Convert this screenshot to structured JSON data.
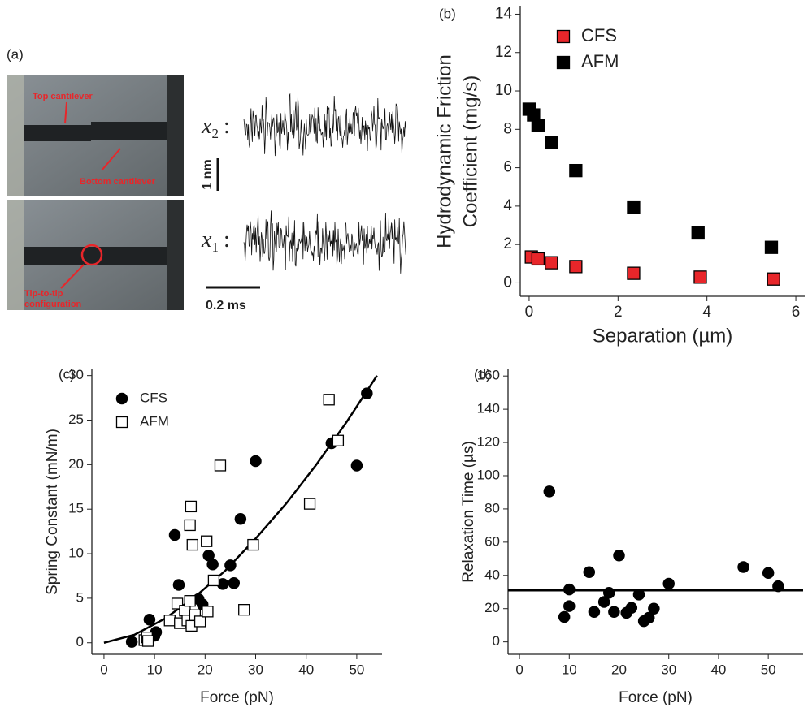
{
  "panel_a": {
    "label": "(a)",
    "annotations": {
      "top": "Top cantilever",
      "bottom": "Bottom cantilever",
      "tip": [
        "Tip-to-tip",
        "configuration"
      ]
    },
    "traces": [
      {
        "var": "x",
        "sub": "2",
        "sep": ":"
      },
      {
        "var": "x",
        "sub": "1",
        "sep": ":"
      }
    ],
    "scale_bars": {
      "vertical": "1 nm",
      "horizontal": "0.2 ms"
    }
  },
  "chart_data": [
    {
      "type": "scatter",
      "panel_label": "(b)",
      "xlabel": "Separation (µm)",
      "ylabel": [
        "Hydrodynamic Friction",
        "Coefficient (mg/s)"
      ],
      "xlim": [
        -0.2,
        6.2
      ],
      "ylim": [
        -0.7,
        14.4
      ],
      "xticks": [
        0,
        2,
        4,
        6
      ],
      "yticks": [
        0,
        2,
        4,
        6,
        8,
        10,
        12,
        14
      ],
      "legend": "upper-left",
      "series": [
        {
          "name": "CFS",
          "color": "#e8262a",
          "marker": "square",
          "filled": true,
          "x": [
            0.05,
            0.2,
            0.5,
            1.05,
            2.35,
            3.85,
            5.5
          ],
          "values": [
            1.35,
            1.25,
            1.05,
            0.85,
            0.5,
            0.3,
            0.2
          ]
        },
        {
          "name": "AFM",
          "color": "#000000",
          "marker": "square",
          "filled": true,
          "x": [
            0,
            0.1,
            0.2,
            0.5,
            1.05,
            2.35,
            3.8,
            5.45
          ],
          "values": [
            9.05,
            8.75,
            8.2,
            7.3,
            5.85,
            3.95,
            2.6,
            1.85
          ]
        }
      ]
    },
    {
      "type": "scatter",
      "panel_label": "(c)",
      "xlabel": "Force (pN)",
      "ylabel": [
        "Spring Constant (mN/m)"
      ],
      "xlim": [
        -2.4,
        55
      ],
      "ylim": [
        -1.3,
        30.7
      ],
      "xticks": [
        0,
        10,
        20,
        30,
        40,
        50
      ],
      "yticks": [
        0,
        5,
        10,
        15,
        20,
        25,
        30
      ],
      "legend": "upper-left",
      "series": [
        {
          "name": "CFS",
          "color": "#000000",
          "marker": "circle",
          "filled": true,
          "x": [
            5.5,
            9,
            10,
            10.3,
            14,
            14.8,
            16.7,
            17.5,
            18.7,
            19.5,
            20.7,
            21.5,
            23.5,
            25,
            25.7,
            27,
            30,
            45,
            50,
            52
          ],
          "values": [
            0.1,
            2.6,
            0.8,
            1.2,
            12.1,
            6.5,
            2.6,
            2.8,
            4.9,
            4.3,
            9.8,
            8.8,
            6.6,
            8.7,
            6.7,
            13.9,
            20.4,
            22.4,
            19.9,
            28
          ]
        },
        {
          "name": "AFM",
          "color": "#000000",
          "marker": "square",
          "filled": false,
          "x": [
            8,
            8.5,
            8.7,
            13,
            14.5,
            15,
            16,
            16.5,
            17,
            17,
            17.2,
            17.3,
            17.5,
            18,
            19,
            20.3,
            20.5,
            21.7,
            23,
            27.7,
            29.5,
            40.7,
            44.5,
            46.3
          ],
          "values": [
            0.3,
            0.6,
            0.2,
            2.5,
            4.4,
            2.2,
            3.6,
            2.5,
            13.2,
            4.7,
            15.3,
            1.9,
            11,
            3.1,
            2.4,
            11.4,
            3.5,
            7,
            19.9,
            3.7,
            11,
            15.6,
            27.3,
            22.7
          ]
        }
      ],
      "fit_curve": {
        "color": "#000000",
        "x": [
          0,
          6,
          12,
          18,
          24,
          30,
          36,
          42,
          48,
          54
        ],
        "values": [
          0,
          0.89,
          2.69,
          5.15,
          8.1,
          11.7,
          15.6,
          20,
          24.8,
          30
        ]
      }
    },
    {
      "type": "scatter",
      "panel_label": "(d)",
      "xlabel": "Force (pN)",
      "ylabel": [
        "Relaxation Time (µs)"
      ],
      "xlim": [
        -2.3,
        57
      ],
      "ylim": [
        -7.5,
        164
      ],
      "xticks": [
        0,
        10,
        20,
        30,
        40,
        50
      ],
      "yticks": [
        0,
        20,
        40,
        60,
        80,
        100,
        120,
        140,
        160
      ],
      "series": [
        {
          "color": "#000000",
          "marker": "circle",
          "filled": true,
          "x": [
            6,
            9,
            10,
            10,
            14,
            15,
            17,
            18,
            19,
            20,
            21.5,
            22.5,
            24,
            25,
            26,
            27,
            30,
            45,
            50,
            52
          ],
          "values": [
            90.5,
            15,
            21.5,
            31.5,
            42,
            18,
            24,
            29.5,
            18,
            52,
            17.5,
            20.5,
            28.5,
            12.5,
            14.5,
            20,
            35,
            45,
            41.5,
            33.5
          ]
        }
      ],
      "reference_line": 31
    }
  ]
}
